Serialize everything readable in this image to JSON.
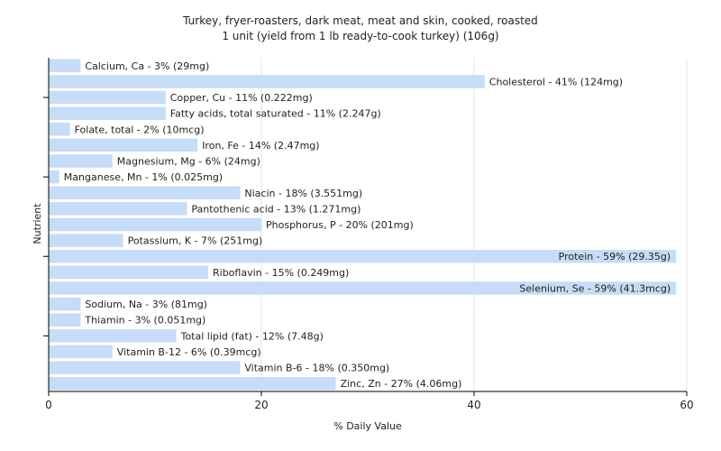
{
  "chart_data": {
    "type": "bar",
    "orientation": "horizontal",
    "title": "Turkey, fryer-roasters, dark meat, meat and skin, cooked, roasted",
    "subtitle": "1 unit (yield from 1 lb ready-to-cook turkey) (106g)",
    "xlabel": "% Daily Value",
    "ylabel": "Nutrient",
    "xlim": [
      0,
      60
    ],
    "xticks": [
      0,
      20,
      40,
      60
    ],
    "grid": true,
    "bar_color": "#c6dcf7",
    "categories": [
      "Calcium, Ca",
      "Cholesterol",
      "Copper, Cu",
      "Fatty acids, total saturated",
      "Folate, total",
      "Iron, Fe",
      "Magnesium, Mg",
      "Manganese, Mn",
      "Niacin",
      "Pantothenic acid",
      "Phosphorus, P",
      "Potassium, K",
      "Protein",
      "Riboflavin",
      "Selenium, Se",
      "Sodium, Na",
      "Thiamin",
      "Total lipid (fat)",
      "Vitamin B-12",
      "Vitamin B-6",
      "Zinc, Zn"
    ],
    "values": [
      3,
      41,
      11,
      11,
      2,
      14,
      6,
      1,
      18,
      13,
      20,
      7,
      59,
      15,
      59,
      3,
      3,
      12,
      6,
      18,
      27
    ],
    "labels": [
      "Calcium, Ca - 3% (29mg)",
      "Cholesterol - 41% (124mg)",
      "Copper, Cu - 11% (0.222mg)",
      "Fatty acids, total saturated - 11% (2.247g)",
      "Folate, total - 2% (10mcg)",
      "Iron, Fe - 14% (2.47mg)",
      "Magnesium, Mg - 6% (24mg)",
      "Manganese, Mn - 1% (0.025mg)",
      "Niacin - 18% (3.551mg)",
      "Pantothenic acid - 13% (1.271mg)",
      "Phosphorus, P - 20% (201mg)",
      "Potassium, K - 7% (251mg)",
      "Protein - 59% (29.35g)",
      "Riboflavin - 15% (0.249mg)",
      "Selenium, Se - 59% (41.3mcg)",
      "Sodium, Na - 3% (81mg)",
      "Thiamin - 3% (0.051mg)",
      "Total lipid (fat) - 12% (7.48g)",
      "Vitamin B-12 - 6% (0.39mcg)",
      "Vitamin B-6 - 18% (0.350mg)",
      "Zinc, Zn - 27% (4.06mg)"
    ]
  }
}
